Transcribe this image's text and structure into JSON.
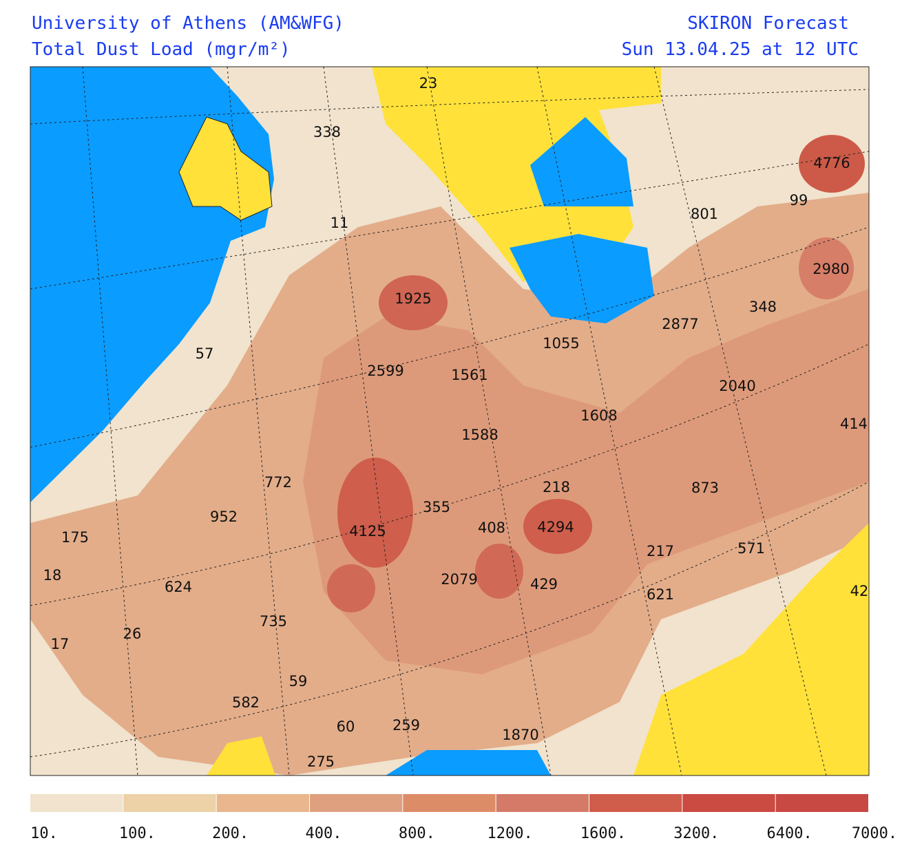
{
  "header": {
    "left_line1": "University of Athens (AM&WFG)",
    "left_line2": "Total Dust Load (mgr/m²)",
    "right_line1": "SKIRON Forecast",
    "right_line2": "Sun 13.04.25 at 12 UTC"
  },
  "map_labels": [
    23,
    338,
    4776,
    99,
    801,
    11,
    2980,
    1925,
    348,
    2877,
    1055,
    57,
    2599,
    1561,
    2040,
    1608,
    414,
    1588,
    772,
    218,
    873,
    355,
    952,
    4125,
    408,
    4294,
    175,
    217,
    571,
    18,
    2079,
    429,
    624,
    621,
    42,
    735,
    26,
    17,
    59,
    582,
    60,
    259,
    1870,
    275
  ],
  "colorbar": {
    "colors": [
      "#f1e3cd",
      "#ecd2a6",
      "#e9b68d",
      "#dea07f",
      "#dd8c68",
      "#d57a68",
      "#d05c4c",
      "#cb4a42",
      "#c84843"
    ],
    "labels": [
      "10.",
      "100.",
      "200.",
      "400.",
      "800.",
      "1200.",
      "1600.",
      "3200.",
      "6400.",
      "7000."
    ]
  }
}
